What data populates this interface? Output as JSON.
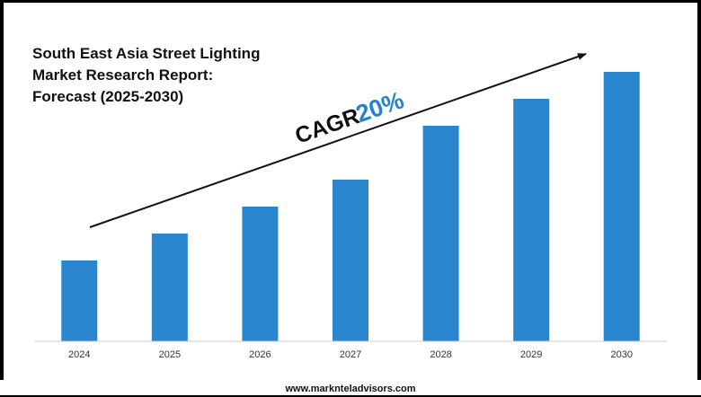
{
  "title_lines": [
    "South East Asia Street Lighting",
    "Market Research Report:",
    "Forecast (2025-2030)"
  ],
  "annotation": {
    "label": "CAGR",
    "value": "20%",
    "label_color": "#111111",
    "value_color": "#2a7fce"
  },
  "footer": "www.marknteladvisors.com",
  "colors": {
    "bar": "#2a86cf",
    "arrow": "#111111",
    "axis": "#cccccc"
  },
  "chart_data": {
    "type": "bar",
    "categories": [
      "2024",
      "2025",
      "2026",
      "2027",
      "2028",
      "2029",
      "2030"
    ],
    "values": [
      30,
      40,
      50,
      60,
      80,
      90,
      100
    ],
    "title": "South East Asia Street Lighting Market Research Report: Forecast (2025-2030)",
    "xlabel": "",
    "ylabel": "",
    "ylim": [
      0,
      100
    ],
    "grid": false,
    "legend": "none"
  }
}
